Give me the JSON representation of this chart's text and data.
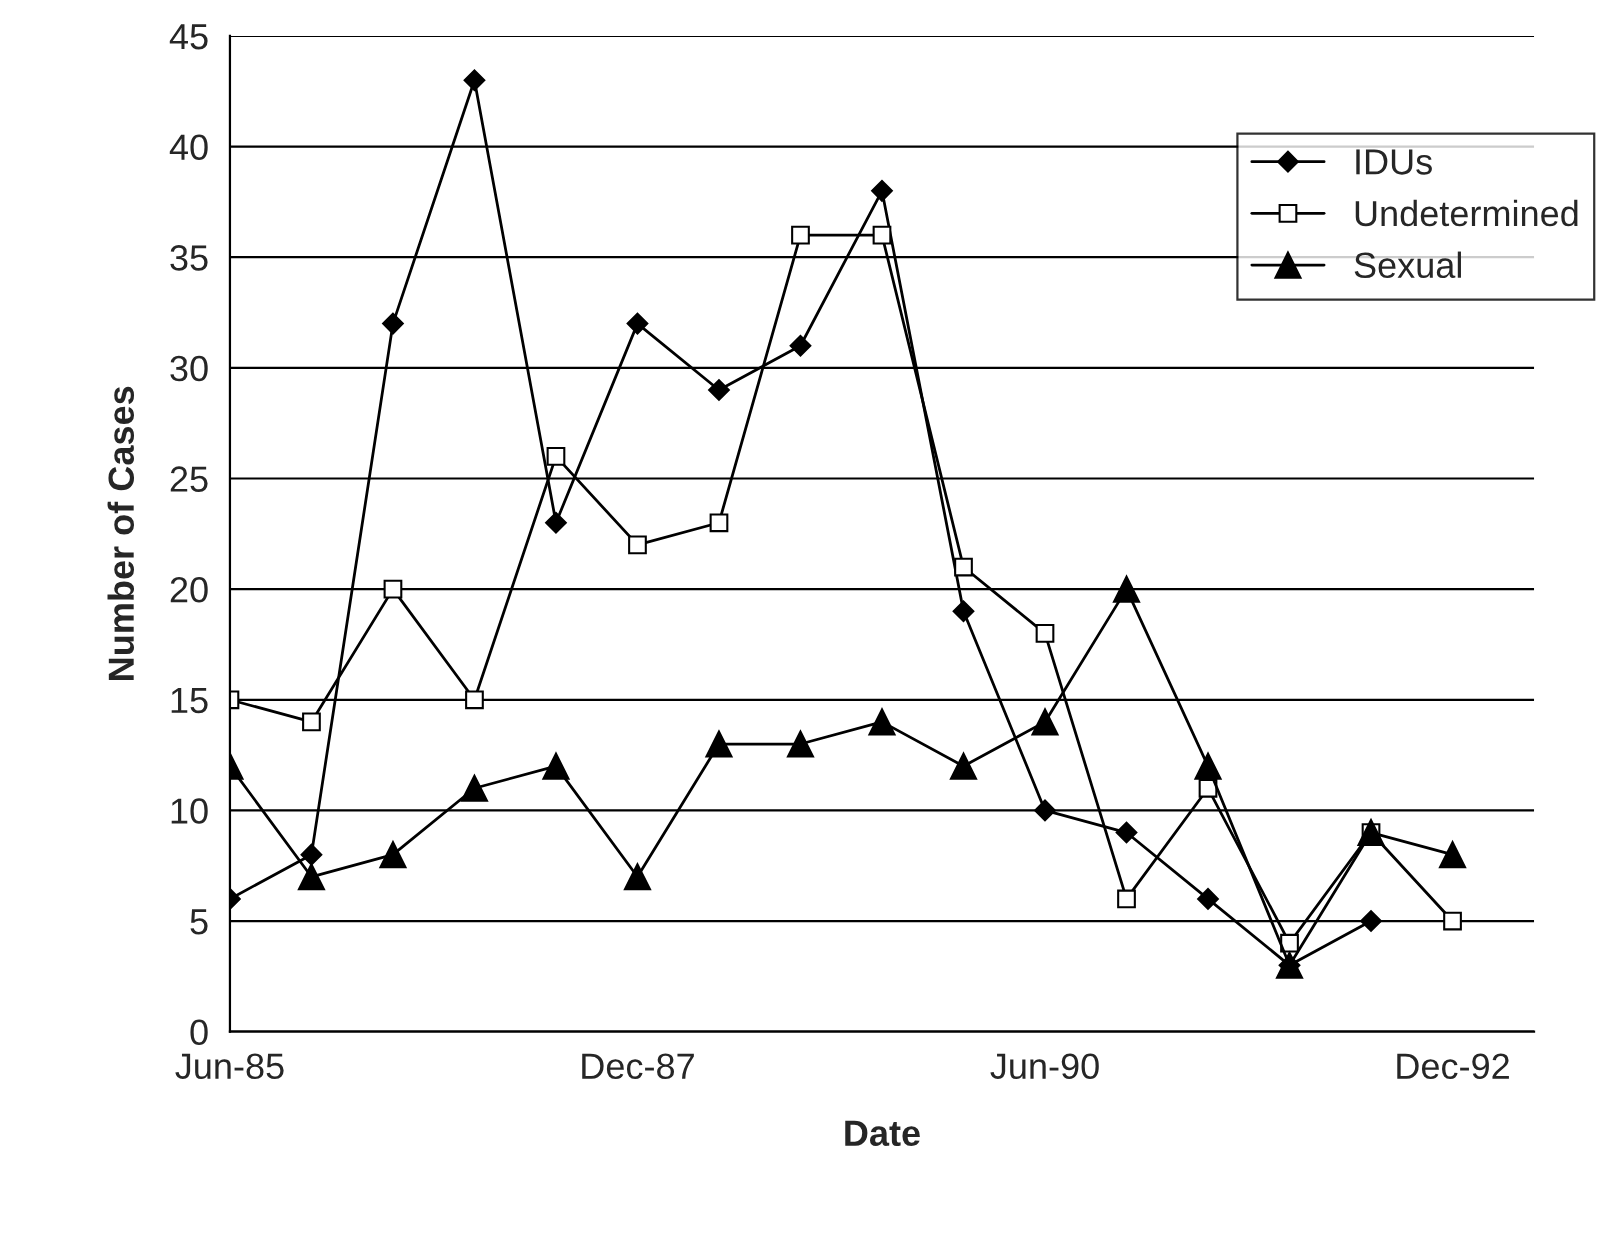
{
  "chart_data": {
    "type": "line",
    "xlabel": "Date",
    "ylabel": "Number of Cases",
    "categories": [
      "Jun-85",
      null,
      null,
      null,
      null,
      "Dec-87",
      null,
      null,
      null,
      null,
      "Jun-90",
      null,
      null,
      null,
      null,
      "Dec-92"
    ],
    "series": [
      {
        "name": "IDUs",
        "color": "#000000",
        "marker": "diamond",
        "values": [
          6,
          8,
          32,
          43,
          23,
          32,
          29,
          31,
          38,
          19,
          10,
          9,
          6,
          3,
          5,
          null
        ]
      },
      {
        "name": "Undetermined",
        "color": "#000000",
        "marker": "square",
        "values": [
          15,
          14,
          20,
          15,
          26,
          22,
          23,
          36,
          36,
          21,
          18,
          6,
          11,
          4,
          9,
          5
        ]
      },
      {
        "name": "Sexual",
        "color": "#000000",
        "marker": "triangle",
        "values": [
          12,
          7,
          8,
          11,
          12,
          7,
          13,
          13,
          14,
          12,
          14,
          20,
          12,
          3,
          9,
          8
        ]
      }
    ],
    "ylim": [
      0,
      45
    ],
    "yticks": [
      0,
      5,
      10,
      15,
      20,
      25,
      30,
      35,
      40,
      45
    ],
    "grid": "y",
    "legend": "top right",
    "line_style": "solid"
  }
}
